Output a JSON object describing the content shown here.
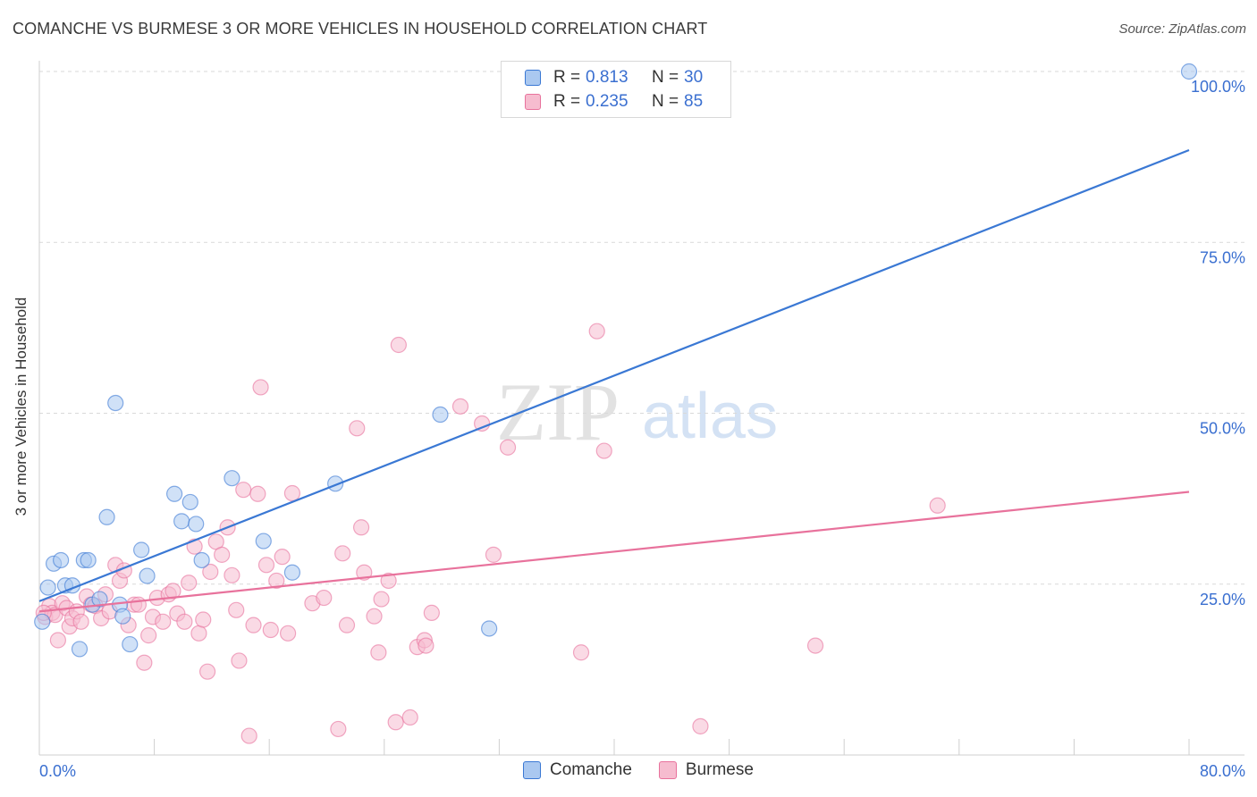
{
  "title": "COMANCHE VS BURMESE 3 OR MORE VEHICLES IN HOUSEHOLD CORRELATION CHART",
  "source": "Source: ZipAtlas.com",
  "watermark": {
    "zip": "ZIP",
    "atlas": "atlas"
  },
  "legend": {
    "r_label": "R =",
    "n_label": "N =",
    "series": [
      {
        "name": "Comanche",
        "r": "0.813",
        "n": "30"
      },
      {
        "name": "Burmese",
        "r": "0.235",
        "n": "85"
      }
    ]
  },
  "chart_data": {
    "type": "scatter",
    "title": "COMANCHE VS BURMESE 3 OR MORE VEHICLES IN HOUSEHOLD CORRELATION CHART",
    "xlabel": "",
    "ylabel": "3 or more Vehicles in Household",
    "xlim": [
      0,
      80
    ],
    "ylim": [
      0,
      100
    ],
    "x_tick_labels": [
      "0.0%",
      "80.0%"
    ],
    "y_tick_labels": [
      "25.0%",
      "50.0%",
      "75.0%",
      "100.0%"
    ],
    "y_ticks": [
      25,
      50,
      75,
      100
    ],
    "colors": {
      "Comanche": "#3a78d4",
      "Burmese": "#e8729c",
      "Comanche_fill": "#aac8f0",
      "Burmese_fill": "#f6bccf",
      "tick_text": "#3a6fd0"
    },
    "series": [
      {
        "name": "Comanche",
        "trend": {
          "x": [
            0,
            80
          ],
          "y": [
            22.5,
            88.5
          ]
        },
        "points": [
          [
            0.2,
            19.5
          ],
          [
            0.6,
            24.5
          ],
          [
            1.0,
            28.0
          ],
          [
            1.5,
            28.5
          ],
          [
            1.8,
            24.8
          ],
          [
            2.3,
            24.8
          ],
          [
            2.8,
            15.5
          ],
          [
            3.1,
            28.5
          ],
          [
            3.4,
            28.5
          ],
          [
            3.7,
            22.0
          ],
          [
            4.2,
            22.8
          ],
          [
            4.7,
            34.8
          ],
          [
            5.3,
            51.5
          ],
          [
            5.6,
            22.0
          ],
          [
            5.8,
            20.3
          ],
          [
            6.3,
            16.2
          ],
          [
            7.1,
            30.0
          ],
          [
            7.5,
            26.2
          ],
          [
            9.4,
            38.2
          ],
          [
            9.9,
            34.2
          ],
          [
            10.5,
            37.0
          ],
          [
            10.9,
            33.8
          ],
          [
            11.3,
            28.5
          ],
          [
            13.4,
            40.5
          ],
          [
            15.6,
            31.3
          ],
          [
            17.6,
            26.7
          ],
          [
            20.6,
            39.7
          ],
          [
            27.9,
            49.8
          ],
          [
            31.3,
            18.5
          ],
          [
            80.0,
            100.0
          ]
        ]
      },
      {
        "name": "Burmese",
        "trend": {
          "x": [
            0,
            80
          ],
          "y": [
            21.0,
            38.5
          ]
        },
        "points": [
          [
            0.4,
            20.2
          ],
          [
            0.7,
            21.8
          ],
          [
            0.9,
            20.8
          ],
          [
            1.1,
            20.5
          ],
          [
            1.3,
            16.8
          ],
          [
            1.6,
            22.2
          ],
          [
            1.9,
            21.5
          ],
          [
            2.1,
            18.8
          ],
          [
            2.3,
            20.0
          ],
          [
            2.6,
            21.0
          ],
          [
            2.9,
            19.5
          ],
          [
            3.3,
            23.2
          ],
          [
            3.6,
            22.0
          ],
          [
            3.9,
            21.8
          ],
          [
            4.3,
            20.0
          ],
          [
            4.6,
            23.5
          ],
          [
            4.9,
            21.0
          ],
          [
            5.3,
            27.8
          ],
          [
            5.6,
            25.5
          ],
          [
            5.9,
            27.0
          ],
          [
            6.2,
            19.0
          ],
          [
            6.6,
            22.0
          ],
          [
            6.9,
            22.0
          ],
          [
            7.3,
            13.5
          ],
          [
            7.6,
            17.5
          ],
          [
            7.9,
            20.2
          ],
          [
            8.2,
            23.0
          ],
          [
            8.6,
            19.5
          ],
          [
            9.0,
            23.5
          ],
          [
            9.3,
            24.0
          ],
          [
            9.6,
            20.7
          ],
          [
            10.1,
            19.5
          ],
          [
            10.4,
            25.2
          ],
          [
            10.8,
            30.5
          ],
          [
            11.1,
            17.8
          ],
          [
            11.4,
            19.8
          ],
          [
            11.7,
            12.2
          ],
          [
            11.9,
            26.8
          ],
          [
            12.3,
            31.2
          ],
          [
            12.7,
            29.3
          ],
          [
            13.1,
            33.3
          ],
          [
            13.4,
            26.3
          ],
          [
            13.7,
            21.2
          ],
          [
            13.9,
            13.8
          ],
          [
            14.2,
            38.8
          ],
          [
            14.6,
            2.8
          ],
          [
            14.9,
            19.0
          ],
          [
            15.2,
            38.2
          ],
          [
            15.4,
            53.8
          ],
          [
            15.8,
            27.8
          ],
          [
            16.1,
            18.3
          ],
          [
            16.5,
            25.5
          ],
          [
            16.9,
            29.0
          ],
          [
            17.3,
            17.8
          ],
          [
            17.6,
            38.3
          ],
          [
            19.0,
            22.2
          ],
          [
            19.8,
            23.0
          ],
          [
            20.8,
            3.8
          ],
          [
            21.1,
            29.5
          ],
          [
            21.4,
            19.0
          ],
          [
            22.1,
            47.8
          ],
          [
            22.4,
            33.3
          ],
          [
            22.6,
            26.7
          ],
          [
            23.3,
            20.3
          ],
          [
            23.6,
            15.0
          ],
          [
            23.8,
            22.8
          ],
          [
            24.3,
            25.5
          ],
          [
            24.8,
            4.8
          ],
          [
            25.0,
            60.0
          ],
          [
            25.8,
            5.5
          ],
          [
            26.3,
            15.8
          ],
          [
            26.8,
            16.8
          ],
          [
            26.9,
            16.0
          ],
          [
            27.3,
            20.8
          ],
          [
            29.3,
            51.0
          ],
          [
            30.8,
            48.5
          ],
          [
            31.6,
            29.3
          ],
          [
            32.6,
            45.0
          ],
          [
            37.7,
            15.0
          ],
          [
            38.8,
            62.0
          ],
          [
            39.3,
            44.5
          ],
          [
            46.0,
            4.2
          ],
          [
            54.0,
            16.0
          ],
          [
            62.5,
            36.5
          ],
          [
            0.3,
            20.8
          ]
        ]
      }
    ]
  }
}
